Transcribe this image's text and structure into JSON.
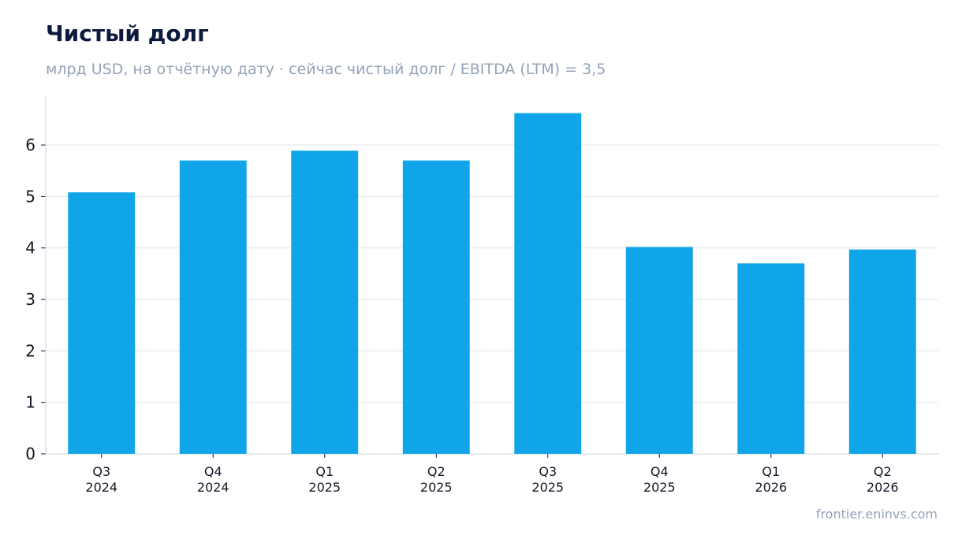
{
  "header": {
    "title": "Чистый долг",
    "subtitle": "млрд USD, на отчётную дату · сейчас чистый долг / EBITDA (LTM) = 3,5"
  },
  "footer": {
    "source": "frontier.eninvs.com"
  },
  "colors": {
    "bar": "#10a5e8",
    "title": "#0c1a3d",
    "muted": "#94a3b8",
    "grid": "#e5e7eb",
    "axis": "#cbd5e1"
  },
  "chart_data": {
    "type": "bar",
    "categories": [
      [
        "Q3",
        "2024"
      ],
      [
        "Q4",
        "2024"
      ],
      [
        "Q1",
        "2025"
      ],
      [
        "Q2",
        "2025"
      ],
      [
        "Q3",
        "2025"
      ],
      [
        "Q4",
        "2025"
      ],
      [
        "Q1",
        "2026"
      ],
      [
        "Q2",
        "2026"
      ]
    ],
    "values": [
      5.08,
      5.7,
      5.89,
      5.7,
      6.62,
      4.02,
      3.7,
      3.97
    ],
    "title": "Чистый долг",
    "subtitle": "млрд USD, на отчётную дату · сейчас чистый долг / EBITDA (LTM) = 3,5",
    "xlabel": "",
    "ylabel": "",
    "ylim": [
      0,
      6.95
    ],
    "yticks": [
      0,
      1,
      2,
      3,
      4,
      5,
      6
    ],
    "grid": true,
    "legend": "none"
  }
}
